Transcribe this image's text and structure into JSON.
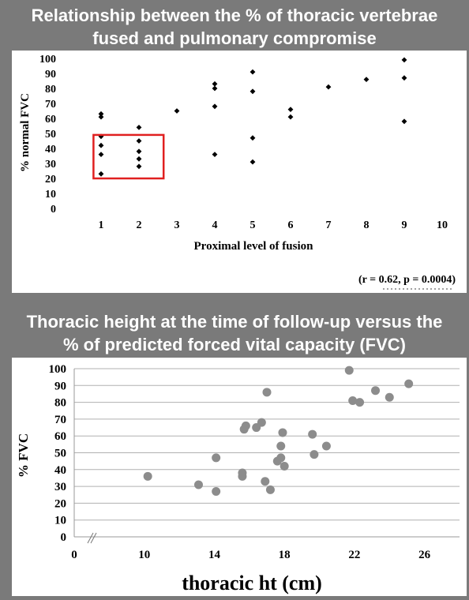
{
  "slide": {
    "title1_line1": "Relationship between the % of thoracic vertebrae",
    "title1_line2": "fused and pulmonary compromise",
    "title2_line1": "Thoracic height at the time of follow-up versus the",
    "title2_line2": "% of predicted forced vital capacity (FVC)",
    "background_color": "#7a7a7a"
  },
  "chart_data": [
    {
      "type": "scatter",
      "xlabel": "Proximal level of fusion",
      "ylabel": "% normal FVC",
      "xlim": [
        0,
        10
      ],
      "ylim": [
        0,
        100
      ],
      "x_ticks": [
        1,
        2,
        3,
        4,
        5,
        6,
        7,
        8,
        9,
        10
      ],
      "y_ticks": [
        0,
        10,
        20,
        30,
        40,
        50,
        60,
        70,
        80,
        90,
        100
      ],
      "grid": false,
      "marker": "diamond",
      "marker_color": "#000000",
      "annotation": "(r = 0.62, p = 0.0004)",
      "highlight_box": {
        "x_range": [
          0.8,
          2.65
        ],
        "y_range": [
          20,
          49
        ],
        "color": "#e02020"
      },
      "points": [
        {
          "x": 1,
          "y": 63
        },
        {
          "x": 1,
          "y": 61
        },
        {
          "x": 1,
          "y": 48
        },
        {
          "x": 1,
          "y": 42
        },
        {
          "x": 1,
          "y": 36
        },
        {
          "x": 1,
          "y": 23
        },
        {
          "x": 2,
          "y": 54
        },
        {
          "x": 2,
          "y": 45
        },
        {
          "x": 2,
          "y": 38
        },
        {
          "x": 2,
          "y": 33
        },
        {
          "x": 2,
          "y": 28
        },
        {
          "x": 3,
          "y": 65
        },
        {
          "x": 4,
          "y": 83
        },
        {
          "x": 4,
          "y": 80
        },
        {
          "x": 4,
          "y": 68
        },
        {
          "x": 4,
          "y": 36
        },
        {
          "x": 5,
          "y": 91
        },
        {
          "x": 5,
          "y": 78
        },
        {
          "x": 5,
          "y": 47
        },
        {
          "x": 5,
          "y": 31
        },
        {
          "x": 6,
          "y": 66
        },
        {
          "x": 6,
          "y": 61
        },
        {
          "x": 7,
          "y": 81
        },
        {
          "x": 8,
          "y": 86
        },
        {
          "x": 9,
          "y": 99
        },
        {
          "x": 9,
          "y": 87
        },
        {
          "x": 9,
          "y": 58
        }
      ]
    },
    {
      "type": "scatter",
      "xlabel": "thoracic ht (cm)",
      "ylabel": "% FVC",
      "xlim": [
        6,
        28
      ],
      "ylim": [
        0,
        100
      ],
      "x_ticks": [
        10,
        14,
        18,
        22,
        26
      ],
      "x_tick_labels": [
        "0",
        "10",
        "14",
        "18",
        "22",
        "26"
      ],
      "y_ticks": [
        0,
        10,
        20,
        30,
        40,
        50,
        60,
        70,
        80,
        90,
        100
      ],
      "grid": true,
      "axis_break": true,
      "marker": "circle",
      "marker_color": "#8c8c8c",
      "points": [
        {
          "x": 10.2,
          "y": 36
        },
        {
          "x": 13.1,
          "y": 31
        },
        {
          "x": 14.1,
          "y": 27
        },
        {
          "x": 14.1,
          "y": 47
        },
        {
          "x": 15.6,
          "y": 38
        },
        {
          "x": 15.6,
          "y": 36
        },
        {
          "x": 15.7,
          "y": 64
        },
        {
          "x": 15.8,
          "y": 66
        },
        {
          "x": 16.4,
          "y": 65
        },
        {
          "x": 16.7,
          "y": 68
        },
        {
          "x": 16.9,
          "y": 33
        },
        {
          "x": 17.0,
          "y": 86
        },
        {
          "x": 17.2,
          "y": 28
        },
        {
          "x": 17.6,
          "y": 45
        },
        {
          "x": 17.8,
          "y": 47
        },
        {
          "x": 17.8,
          "y": 54
        },
        {
          "x": 17.9,
          "y": 62
        },
        {
          "x": 18.0,
          "y": 42
        },
        {
          "x": 19.6,
          "y": 61
        },
        {
          "x": 19.7,
          "y": 49
        },
        {
          "x": 20.4,
          "y": 54
        },
        {
          "x": 21.7,
          "y": 99
        },
        {
          "x": 21.9,
          "y": 81
        },
        {
          "x": 22.3,
          "y": 80
        },
        {
          "x": 23.2,
          "y": 87
        },
        {
          "x": 24.0,
          "y": 83
        },
        {
          "x": 25.1,
          "y": 91
        }
      ]
    }
  ]
}
